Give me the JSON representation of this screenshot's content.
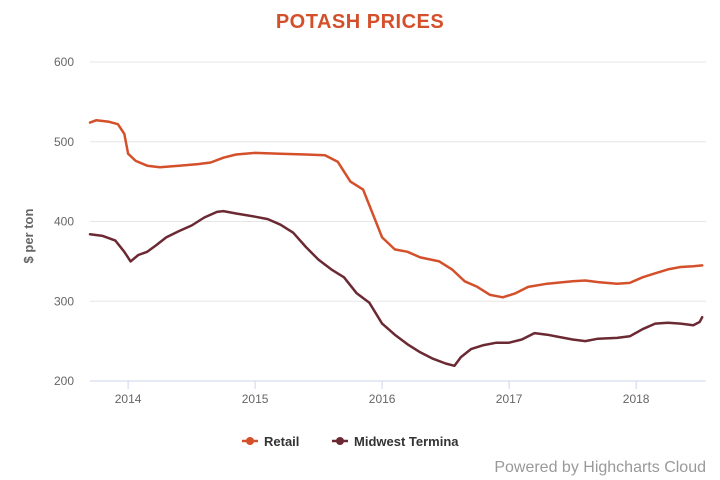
{
  "chart_data": {
    "type": "line",
    "title": "POTASH PRICES",
    "ylabel": "$ per ton",
    "xlabel": "",
    "ylim": [
      200,
      600
    ],
    "yticks": [
      "200",
      "300",
      "400",
      "500",
      "600"
    ],
    "xticks": [
      "2014",
      "2015",
      "2016",
      "2017",
      "2018"
    ],
    "xlim": [
      2013.7,
      2018.55
    ],
    "grid": true,
    "legend_position": "bottom-center",
    "credits": "Powered by Highcharts Cloud",
    "title_color": "#d4502a",
    "series": [
      {
        "name": "Retail",
        "color": "#d4502a",
        "points": [
          [
            2013.7,
            524
          ],
          [
            2013.75,
            527
          ],
          [
            2013.85,
            525
          ],
          [
            2013.92,
            522
          ],
          [
            2013.97,
            510
          ],
          [
            2014.0,
            485
          ],
          [
            2014.06,
            476
          ],
          [
            2014.15,
            470
          ],
          [
            2014.25,
            468
          ],
          [
            2014.4,
            470
          ],
          [
            2014.55,
            472
          ],
          [
            2014.65,
            474
          ],
          [
            2014.75,
            480
          ],
          [
            2014.85,
            484
          ],
          [
            2015.0,
            486
          ],
          [
            2015.2,
            485
          ],
          [
            2015.4,
            484
          ],
          [
            2015.55,
            483
          ],
          [
            2015.65,
            475
          ],
          [
            2015.75,
            450
          ],
          [
            2015.85,
            440
          ],
          [
            2015.95,
            400
          ],
          [
            2016.0,
            380
          ],
          [
            2016.1,
            365
          ],
          [
            2016.2,
            362
          ],
          [
            2016.3,
            355
          ],
          [
            2016.45,
            350
          ],
          [
            2016.55,
            340
          ],
          [
            2016.65,
            325
          ],
          [
            2016.75,
            318
          ],
          [
            2016.85,
            308
          ],
          [
            2016.95,
            305
          ],
          [
            2017.05,
            310
          ],
          [
            2017.15,
            318
          ],
          [
            2017.3,
            322
          ],
          [
            2017.5,
            325
          ],
          [
            2017.6,
            326
          ],
          [
            2017.7,
            324
          ],
          [
            2017.85,
            322
          ],
          [
            2017.95,
            323
          ],
          [
            2018.05,
            330
          ],
          [
            2018.15,
            335
          ],
          [
            2018.25,
            340
          ],
          [
            2018.35,
            343
          ],
          [
            2018.45,
            344
          ],
          [
            2018.52,
            345
          ]
        ]
      },
      {
        "name": "Midwest Termina",
        "color": "#6b2a33",
        "points": [
          [
            2013.7,
            384
          ],
          [
            2013.8,
            382
          ],
          [
            2013.9,
            376
          ],
          [
            2013.97,
            362
          ],
          [
            2014.02,
            350
          ],
          [
            2014.08,
            358
          ],
          [
            2014.15,
            362
          ],
          [
            2014.22,
            370
          ],
          [
            2014.3,
            380
          ],
          [
            2014.4,
            388
          ],
          [
            2014.5,
            395
          ],
          [
            2014.6,
            405
          ],
          [
            2014.7,
            412
          ],
          [
            2014.75,
            413
          ],
          [
            2014.85,
            410
          ],
          [
            2015.0,
            406
          ],
          [
            2015.1,
            403
          ],
          [
            2015.2,
            396
          ],
          [
            2015.3,
            386
          ],
          [
            2015.4,
            368
          ],
          [
            2015.5,
            352
          ],
          [
            2015.6,
            340
          ],
          [
            2015.7,
            330
          ],
          [
            2015.8,
            310
          ],
          [
            2015.9,
            298
          ],
          [
            2016.0,
            272
          ],
          [
            2016.1,
            258
          ],
          [
            2016.2,
            246
          ],
          [
            2016.3,
            236
          ],
          [
            2016.4,
            228
          ],
          [
            2016.5,
            222
          ],
          [
            2016.57,
            219
          ],
          [
            2016.62,
            230
          ],
          [
            2016.7,
            240
          ],
          [
            2016.8,
            245
          ],
          [
            2016.9,
            248
          ],
          [
            2017.0,
            248
          ],
          [
            2017.1,
            252
          ],
          [
            2017.2,
            260
          ],
          [
            2017.3,
            258
          ],
          [
            2017.4,
            255
          ],
          [
            2017.5,
            252
          ],
          [
            2017.6,
            250
          ],
          [
            2017.7,
            253
          ],
          [
            2017.85,
            254
          ],
          [
            2017.95,
            256
          ],
          [
            2018.05,
            265
          ],
          [
            2018.15,
            272
          ],
          [
            2018.25,
            273
          ],
          [
            2018.35,
            272
          ],
          [
            2018.45,
            270
          ],
          [
            2018.5,
            274
          ],
          [
            2018.52,
            280
          ]
        ]
      }
    ]
  }
}
